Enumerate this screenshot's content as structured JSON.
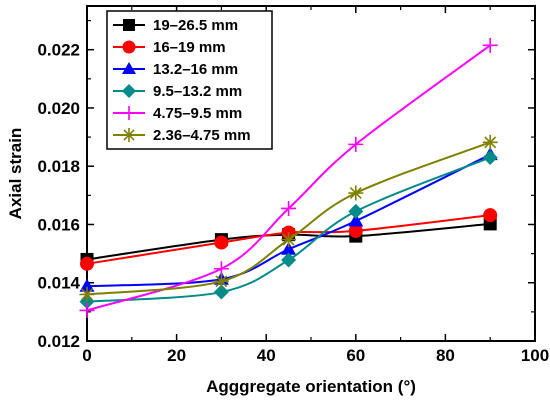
{
  "chart_data": {
    "type": "line",
    "xlabel": "Agggregate orientation (°)",
    "ylabel": "Axial strain",
    "xlim": [
      0,
      100
    ],
    "ylim": [
      0.012,
      0.0235
    ],
    "x_ticks": [
      "0",
      "20",
      "40",
      "60",
      "80",
      "100"
    ],
    "y_ticks": [
      "0.012",
      "0.014",
      "0.016",
      "0.018",
      "0.020",
      "0.022"
    ],
    "x": [
      0,
      30,
      45,
      60,
      90
    ],
    "grid": false,
    "legend_position": "top-left",
    "series": [
      {
        "name": "19–26.5 mm",
        "values": [
          0.0148,
          0.01548,
          0.01565,
          0.0156,
          0.01602
        ],
        "color": "#000000",
        "marker": "square"
      },
      {
        "name": "16–19 mm",
        "values": [
          0.01465,
          0.01538,
          0.01572,
          0.01578,
          0.01632
        ],
        "color": "#ff0000",
        "marker": "circle"
      },
      {
        "name": "13.2–16 mm",
        "values": [
          0.01388,
          0.01412,
          0.01515,
          0.01612,
          0.0184
        ],
        "color": "#0000ff",
        "marker": "triangle"
      },
      {
        "name": "9.5–13.2 mm",
        "values": [
          0.01335,
          0.01368,
          0.01478,
          0.01645,
          0.0183
        ],
        "color": "#008b8b",
        "marker": "diamond"
      },
      {
        "name": "4.75–9.5 mm",
        "values": [
          0.01305,
          0.01448,
          0.01655,
          0.01875,
          0.02215
        ],
        "color": "#ff00ff",
        "marker": "plus"
      },
      {
        "name": "2.36–4.75 mm",
        "values": [
          0.0136,
          0.01405,
          0.01548,
          0.01708,
          0.01882
        ],
        "color": "#808000",
        "marker": "star"
      }
    ]
  }
}
